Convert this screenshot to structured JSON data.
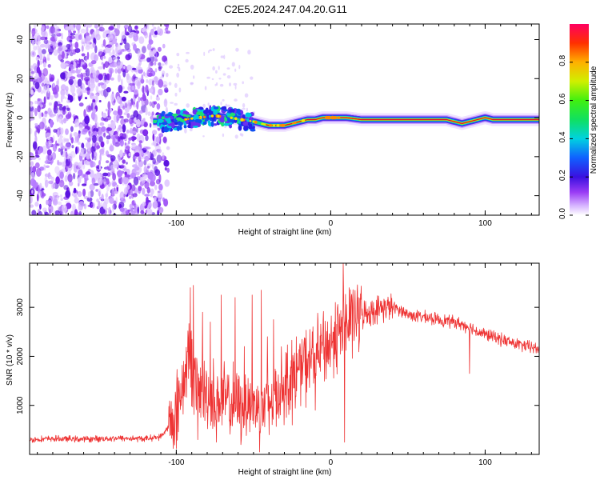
{
  "figure_title": "C2E5.2024.247.04.20.G11",
  "chart_data": [
    {
      "type": "heatmap",
      "xlabel": "Height of straight line (km)",
      "ylabel": "Frequency (Hz)",
      "xlim": [
        -195,
        135
      ],
      "ylim": [
        -50,
        48
      ],
      "xticks": [
        -100,
        0,
        100
      ],
      "yticks": [
        -40,
        -20,
        0,
        20,
        40
      ],
      "colorbar": {
        "label": "Normalized spectral amplitude",
        "range": [
          0.0,
          1.0
        ],
        "ticks": [
          0.0,
          0.2,
          0.4,
          0.6,
          0.8
        ],
        "tick_labels": [
          "0.0",
          "0.2",
          "0.4",
          "0.6",
          "0.8"
        ]
      },
      "noise_region_x": [
        -195,
        -110
      ],
      "signal_ridge": {
        "x": [
          -115,
          -105,
          -95,
          -85,
          -75,
          -65,
          -58,
          -50,
          -45,
          -40,
          -35,
          -30,
          -25,
          -20,
          -15,
          -10,
          -5,
          0,
          5,
          10,
          20,
          40,
          60,
          75,
          80,
          85,
          90,
          95,
          100,
          105,
          110,
          120,
          135
        ],
        "y": [
          -2,
          -2,
          -1,
          0,
          1,
          0,
          -1,
          -2,
          -3,
          -4,
          -4,
          -4,
          -3,
          -2,
          -1,
          -1,
          0,
          0,
          0,
          0,
          -1,
          -1,
          -1,
          -1,
          -2,
          -3,
          -2,
          -1,
          0,
          -1,
          -1,
          -1,
          -1
        ]
      }
    },
    {
      "type": "line",
      "xlabel": "Height of straight line (km)",
      "ylabel": "SNR (10 * v/v)",
      "xlim": [
        -195,
        135
      ],
      "ylim": [
        0,
        3900
      ],
      "xticks": [
        -100,
        0,
        100
      ],
      "yticks": [
        1000,
        2000,
        3000
      ],
      "color": "#ee3333",
      "series": [
        {
          "x": [
            -195,
            -180,
            -160,
            -140,
            -120,
            -110,
            -104,
            -100,
            -97,
            -94,
            -92,
            -90,
            -88,
            -85,
            -82,
            -78,
            -74,
            -70,
            -66,
            -62,
            -58,
            -54,
            -50,
            -46,
            -42,
            -38,
            -34,
            -30,
            -26,
            -22,
            -18,
            -14,
            -10,
            -6,
            -2,
            2,
            6,
            8,
            9,
            10,
            12,
            16,
            20,
            25,
            30,
            35,
            40,
            45,
            50,
            60,
            70,
            80,
            85,
            90,
            95,
            100,
            110,
            120,
            135
          ],
          "y": [
            300,
            320,
            310,
            330,
            320,
            360,
            600,
            900,
            1300,
            1700,
            2100,
            1800,
            1500,
            1300,
            1250,
            1200,
            1150,
            1100,
            1050,
            1050,
            1000,
            1100,
            1000,
            950,
            1000,
            1150,
            1300,
            1450,
            1600,
            1700,
            1800,
            1850,
            1950,
            2100,
            2200,
            2350,
            2500,
            2600,
            3000,
            2500,
            2700,
            2800,
            2850,
            2900,
            2950,
            3000,
            3000,
            2950,
            2850,
            2800,
            2750,
            2700,
            2650,
            2600,
            2500,
            2450,
            2350,
            2250,
            2150
          ]
        }
      ],
      "spikes": [
        {
          "x": -91,
          "y": 3400
        },
        {
          "x": -89,
          "y": 3450
        },
        {
          "x": -86,
          "y": 3050
        },
        {
          "x": -83,
          "y": 2900
        },
        {
          "x": -78,
          "y": 2700
        },
        {
          "x": -71,
          "y": 3250
        },
        {
          "x": -62,
          "y": 3200
        },
        {
          "x": -56,
          "y": 2200
        },
        {
          "x": -51,
          "y": 3250
        },
        {
          "x": -45,
          "y": 3350
        },
        {
          "x": -41,
          "y": 2400
        },
        {
          "x": -37,
          "y": 2750
        },
        {
          "x": -20,
          "y": 2200
        },
        {
          "x": -12,
          "y": 2500
        },
        {
          "x": -5,
          "y": 2750
        },
        {
          "x": 3,
          "y": 3100
        },
        {
          "x": 8,
          "y": 3900
        },
        {
          "x": 12,
          "y": 3400
        },
        {
          "x": 18,
          "y": 3200
        }
      ],
      "dips": [
        {
          "x": -100,
          "y": 120
        },
        {
          "x": -86,
          "y": 300
        },
        {
          "x": -74,
          "y": 250
        },
        {
          "x": -58,
          "y": 300
        },
        {
          "x": -40,
          "y": 400
        },
        {
          "x": -25,
          "y": 600
        },
        {
          "x": -10,
          "y": 900
        },
        {
          "x": 9,
          "y": 250
        },
        {
          "x": 90,
          "y": 1650
        }
      ]
    }
  ]
}
